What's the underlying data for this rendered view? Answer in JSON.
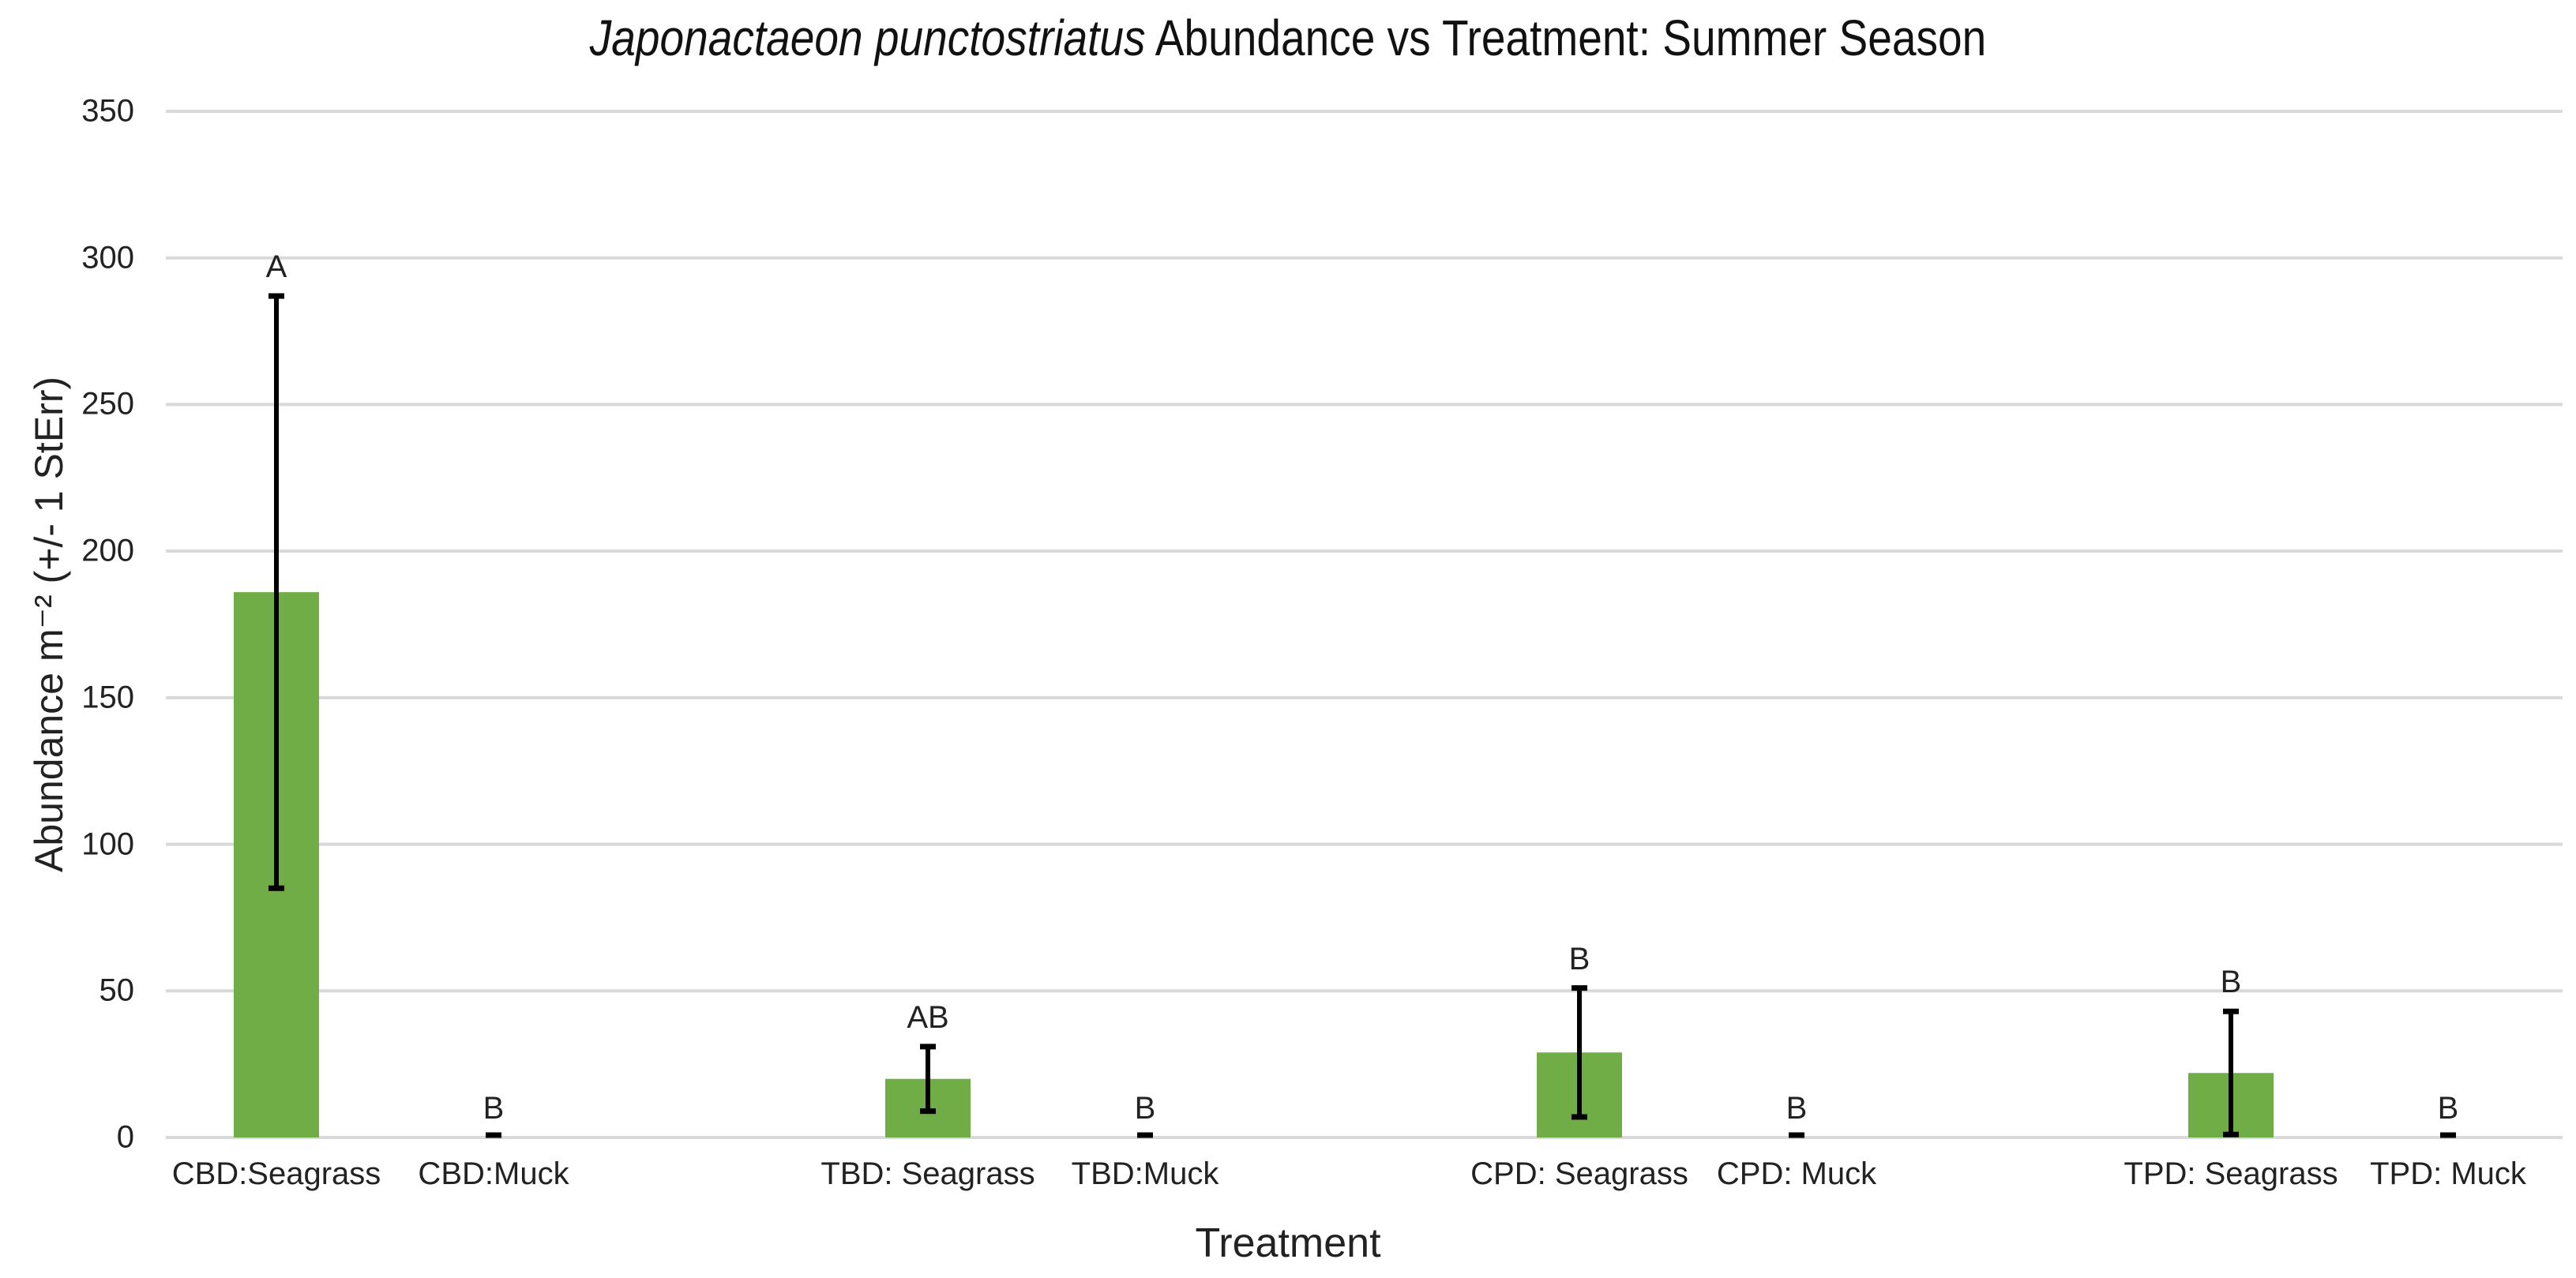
{
  "chart_data": {
    "type": "bar",
    "title": "Japonactaeon punctostriatus Abundance vs Treatment: Summer Season",
    "title_parts": {
      "species": "Japonactaeon punctostriatus",
      "rest": " Abundance vs Treatment: Summer Season"
    },
    "xlabel": "Treatment",
    "ylabel": "Abundance m⁻² (+/- 1 StErr)",
    "ylim": [
      0,
      350
    ],
    "yticks": [
      0,
      50,
      100,
      150,
      200,
      250,
      300,
      350
    ],
    "grid": true,
    "legend": null,
    "bar_color": "#70AD47",
    "error_bar_color": "#000000",
    "categories": [
      "CBD:Seagrass",
      "CBD:Muck",
      "TBD: Seagrass",
      "TBD:Muck",
      "CPD: Seagrass",
      "CPD: Muck",
      "TPD: Seagrass",
      "TPD: Muck"
    ],
    "values": [
      186,
      0,
      20,
      0,
      29,
      0,
      22,
      0
    ],
    "error_plus_minus": [
      101,
      0,
      11,
      0,
      22,
      0,
      21,
      0
    ],
    "significance_letters": [
      "A",
      "B",
      "AB",
      "B",
      "B",
      "B",
      "B",
      "B"
    ]
  }
}
